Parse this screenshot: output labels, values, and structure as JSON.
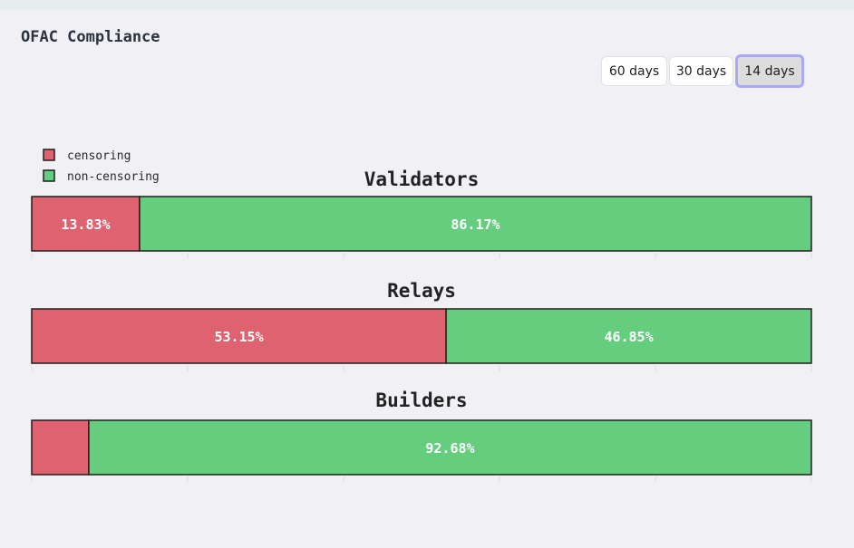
{
  "header": {
    "title": "OFAC Compliance"
  },
  "range_selector": {
    "options": [
      "60 days",
      "30 days",
      "14 days"
    ],
    "selected": "14 days"
  },
  "colors": {
    "censoring": "#df6270",
    "non_censoring": "#64ce7e",
    "outline": "#1f1f1f",
    "background": "#f1f0f4"
  },
  "chart_data": {
    "type": "bar",
    "orientation": "horizontal-stacked-100",
    "legend": {
      "placement": "top-left",
      "entries": [
        "censoring",
        "non-censoring"
      ]
    },
    "xlim": [
      0,
      100
    ],
    "grid": false,
    "charts": [
      {
        "title": "Validators",
        "series": [
          {
            "name": "censoring",
            "value": 13.83,
            "label": "13.83%"
          },
          {
            "name": "non-censoring",
            "value": 86.17,
            "label": "86.17%"
          }
        ]
      },
      {
        "title": "Relays",
        "series": [
          {
            "name": "censoring",
            "value": 53.15,
            "label": "53.15%"
          },
          {
            "name": "non-censoring",
            "value": 46.85,
            "label": "46.85%"
          }
        ]
      },
      {
        "title": "Builders",
        "series": [
          {
            "name": "censoring",
            "value": 7.32,
            "label": ""
          },
          {
            "name": "non-censoring",
            "value": 92.68,
            "label": "92.68%"
          }
        ]
      }
    ]
  }
}
